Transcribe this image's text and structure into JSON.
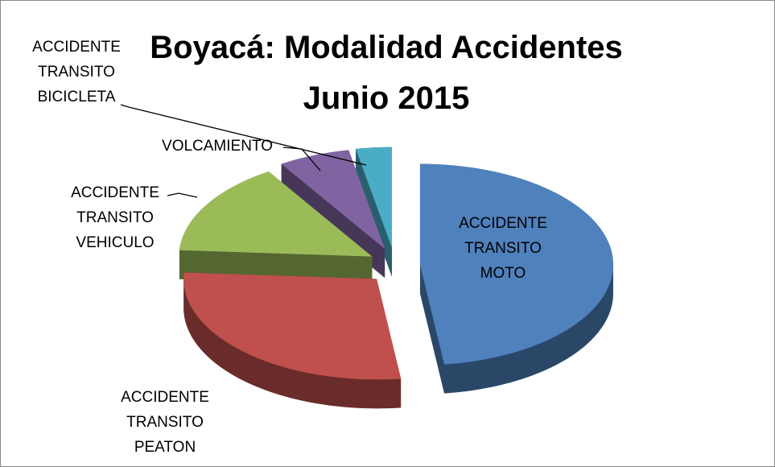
{
  "chart_data": {
    "type": "pie3d",
    "title": "Boyacá: Modalidad Accidentes Junio 2015",
    "categories": [
      "ACCIDENTE TRANSITO MOTO",
      "ACCIDENTE TRANSITO PEATON",
      "ACCIDENTE TRANSITO VEHICULO",
      "VOLCAMIENTO",
      "ACCIDENTE TRANSITO BICICLETA"
    ],
    "values": [
      48,
      28,
      15,
      6,
      3
    ],
    "colors": [
      "#4f81bd",
      "#c0504d",
      "#9bbb59",
      "#8064a2",
      "#4bacc6"
    ]
  }
}
